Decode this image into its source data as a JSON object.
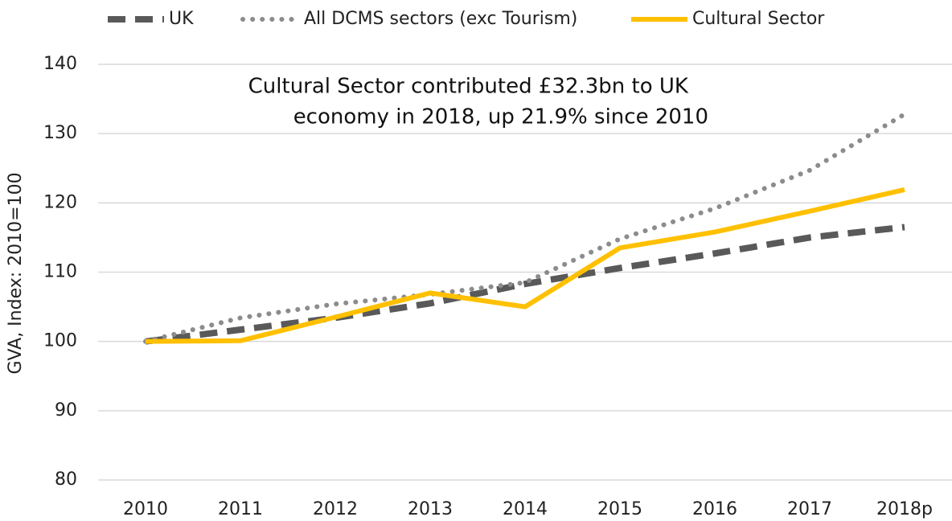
{
  "chart_data": {
    "type": "line",
    "annotation": [
      "Cultural Sector contributed £32.3bn to UK",
      "economy in 2018, up 21.9% since 2010"
    ],
    "y_label": "GVA, Index: 2010=100",
    "categories": [
      "2010",
      "2011",
      "2012",
      "2013",
      "2014",
      "2015",
      "2016",
      "2017",
      "2018p"
    ],
    "series": [
      {
        "name": "UK",
        "color": "#595959",
        "style": "dashed",
        "values": [
          100,
          101.7,
          103.4,
          105.5,
          108.3,
          110.6,
          112.7,
          115.0,
          116.5
        ]
      },
      {
        "name": "All DCMS sectors (exc Tourism)",
        "color": "#8c8c8c",
        "style": "dotted",
        "values": [
          100,
          103.4,
          105.4,
          106.8,
          108.5,
          114.8,
          119.2,
          124.7,
          132.8
        ]
      },
      {
        "name": "Cultural Sector",
        "color": "#ffc000",
        "style": "solid",
        "values": [
          100,
          100.1,
          103.5,
          107.0,
          105.0,
          113.5,
          115.8,
          118.8,
          121.9
        ]
      }
    ],
    "ylim": [
      80,
      140
    ],
    "yticks": [
      80,
      90,
      100,
      110,
      120,
      130,
      140
    ],
    "grid": true,
    "legend": "top"
  }
}
